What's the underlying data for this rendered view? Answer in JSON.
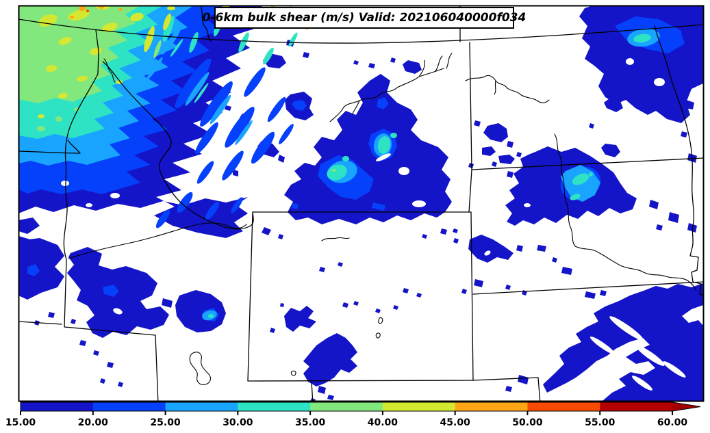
{
  "figure": {
    "title": "0-6km bulk shear (m/s) Valid: 202106040000f034",
    "field_name": "0-6km bulk shear",
    "units": "m/s",
    "valid_stamp": "202106040000f034"
  },
  "colorbar": {
    "tick_labels": [
      "15.00",
      "20.00",
      "25.00",
      "30.00",
      "35.00",
      "40.00",
      "45.00",
      "50.00",
      "55.00",
      "60.00"
    ],
    "levels": [
      15,
      20,
      25,
      30,
      35,
      40,
      45,
      50,
      55,
      60
    ],
    "segment_colors": [
      "#1414C8",
      "#0540FA",
      "#18A4FF",
      "#2EE3C4",
      "#82E87E",
      "#D4E831",
      "#FFA617",
      "#F84A00",
      "#B30000"
    ],
    "arrow_color": "#A00000",
    "outline_color": "#000000"
  },
  "map": {
    "background": "#FFFFFF",
    "border_color": "#000000",
    "fill_colors": {
      "level_15": "#1414C8",
      "level_20": "#0540FA",
      "level_25": "#18A4FF",
      "level_30": "#2EE3C4",
      "level_35": "#82E87E",
      "level_40": "#D4E831",
      "level_45": "#FFA617",
      "level_50": "#F84A00"
    },
    "visible_region": "Pacific Northwest and Northern Plains: WA, OR, ID, MT, WY, ND, SD, NE, UT, CO"
  }
}
